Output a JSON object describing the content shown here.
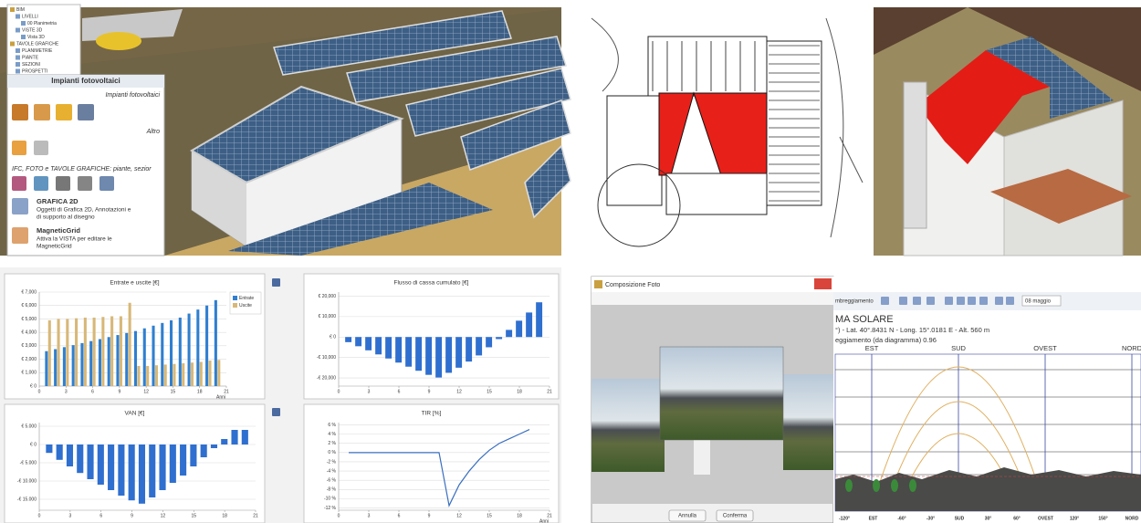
{
  "tree": [
    "BIM",
    "LIVELLI",
    "00 Planimetria",
    "VISTE 3D",
    "Vista 3D",
    "TAVOLE GRAFICHE",
    "PLANIMETRIE",
    "PIANTE",
    "SEZIONI",
    "PROSPETTI"
  ],
  "panel": {
    "title": "Impianti fotovoltaici",
    "section1": "Impianti fotovoltaici",
    "section2": "Altro",
    "section3": "IFC, FOTO e TAVOLE GRAFICHE: piante, sezior",
    "items": [
      {
        "title": "GRAFICA 2D",
        "lines": [
          "Oggetti di Grafica 2D, Annotazioni e",
          "di supporto al disegno"
        ]
      },
      {
        "title": "MagneticGrid",
        "lines": [
          "Attiva la VISTA per editare le",
          "MagneticGrid"
        ]
      }
    ]
  },
  "chart_data": [
    {
      "type": "bar",
      "title": "Entrate e uscite [€]",
      "x_label": "Anni",
      "x": [
        1,
        2,
        3,
        4,
        5,
        6,
        7,
        8,
        9,
        10,
        11,
        12,
        13,
        14,
        15,
        16,
        17,
        18,
        19,
        20
      ],
      "series": [
        {
          "name": "Entrate",
          "color": "#2f7fd0",
          "values": [
            2600,
            2750,
            2900,
            3050,
            3200,
            3350,
            3500,
            3650,
            3800,
            3950,
            4100,
            4300,
            4500,
            4700,
            4900,
            5100,
            5400,
            5700,
            6000,
            6400
          ]
        },
        {
          "name": "Uscite",
          "color": "#d8b878",
          "values": [
            4900,
            5000,
            5000,
            5050,
            5100,
            5100,
            5150,
            5200,
            5200,
            6200,
            1500,
            1500,
            1550,
            1600,
            1650,
            1700,
            1750,
            1800,
            1900,
            1950
          ]
        }
      ],
      "xlim": [
        0,
        21
      ],
      "xticks": [
        0,
        3,
        6,
        9,
        12,
        15,
        18,
        21
      ],
      "ylim": [
        0,
        7000
      ],
      "yticks": [
        {
          "value": 0,
          "label": "€ 0"
        },
        {
          "value": 1000,
          "label": "€ 1,000"
        },
        {
          "value": 2000,
          "label": "€ 2,000"
        },
        {
          "value": 3000,
          "label": "€ 3,000"
        },
        {
          "value": 4000,
          "label": "€ 4,000"
        },
        {
          "value": 5000,
          "label": "€ 5,000"
        },
        {
          "value": 6000,
          "label": "€ 6,000"
        },
        {
          "value": 7000,
          "label": "€ 7,000"
        }
      ],
      "grid": true,
      "legend": "upper right"
    },
    {
      "type": "bar",
      "title": "Flusso di cassa cumulato [€]",
      "x": [
        1,
        2,
        3,
        4,
        5,
        6,
        7,
        8,
        9,
        10,
        11,
        12,
        13,
        14,
        15,
        16,
        17,
        18,
        19,
        20
      ],
      "series": [
        {
          "name": "Flusso",
          "color": "#2f6fcf",
          "values": [
            -2500,
            -4500,
            -6500,
            -8500,
            -10500,
            -12500,
            -14500,
            -16500,
            -18500,
            -19800,
            -17500,
            -15000,
            -12000,
            -9000,
            -5000,
            -1000,
            3500,
            8000,
            12000,
            17000
          ]
        }
      ],
      "xlim": [
        0,
        21
      ],
      "xticks": [
        0,
        3,
        6,
        9,
        12,
        15,
        18,
        21
      ],
      "ylim": [
        -24000,
        22000
      ],
      "yticks": [
        {
          "value": -20000,
          "label": "-€ 20,000"
        },
        {
          "value": -10000,
          "label": "-€ 10,000"
        },
        {
          "value": 0,
          "label": "€ 0"
        },
        {
          "value": 10000,
          "label": "€ 10,000"
        },
        {
          "value": 20000,
          "label": "€ 20,000"
        }
      ],
      "grid": true
    },
    {
      "type": "bar",
      "title": "VAN [€]",
      "x": [
        1,
        2,
        3,
        4,
        5,
        6,
        7,
        8,
        9,
        10,
        11,
        12,
        13,
        14,
        15,
        16,
        17,
        18,
        19,
        20
      ],
      "series": [
        {
          "name": "VAN",
          "color": "#2f6fcf",
          "values": [
            -2300,
            -4200,
            -6000,
            -7800,
            -9500,
            -11000,
            -12500,
            -14000,
            -15300,
            -16200,
            -14500,
            -12500,
            -10500,
            -8500,
            -6000,
            -3500,
            -1000,
            1500,
            4000,
            4000
          ]
        }
      ],
      "xlim": [
        0,
        21
      ],
      "xticks": [
        0,
        3,
        6,
        9,
        12,
        15,
        18,
        21
      ],
      "ylim": [
        -18000,
        6000
      ],
      "yticks": [
        {
          "value": -15000,
          "label": "-€ 15.000"
        },
        {
          "value": -10000,
          "label": "-€ 10.000"
        },
        {
          "value": -5000,
          "label": "-€ 5.000"
        },
        {
          "value": 0,
          "label": "€ 0"
        },
        {
          "value": 5000,
          "label": "€ 5.000"
        }
      ],
      "grid": true
    },
    {
      "type": "line",
      "title": "TIR [%]",
      "x_label": "Anni",
      "x": [
        1,
        2,
        3,
        4,
        5,
        6,
        7,
        8,
        9,
        10,
        11,
        12,
        13,
        14,
        15,
        16,
        17,
        18,
        19
      ],
      "series": [
        {
          "name": "TIR",
          "color": "#3a6fc0",
          "values": [
            0,
            0,
            0,
            0,
            0,
            0,
            0,
            0,
            0,
            0,
            -11.5,
            -7,
            -4,
            -1.5,
            0.5,
            2,
            3,
            4,
            5
          ]
        }
      ],
      "xlim": [
        0,
        21
      ],
      "xticks": [
        0,
        3,
        6,
        9,
        12,
        15,
        18,
        21
      ],
      "ylim": [
        -12.5,
        6.5
      ],
      "yticks": [
        {
          "value": 6,
          "label": "6 %"
        },
        {
          "value": 4,
          "label": "4 %"
        },
        {
          "value": 2,
          "label": "2 %"
        },
        {
          "value": 0,
          "label": "0 %"
        },
        {
          "value": -2,
          "label": "-2 %"
        },
        {
          "value": -4,
          "label": "-4 %"
        },
        {
          "value": -6,
          "label": "-6 %"
        },
        {
          "value": -8,
          "label": "-8 %"
        },
        {
          "value": -10,
          "label": "-10 %"
        },
        {
          "value": -12,
          "label": "-12 %"
        }
      ],
      "grid": true
    }
  ],
  "photo_dialog": {
    "title": "Composizione Foto",
    "buttons": [
      "Annulla",
      "Conferma"
    ]
  },
  "solar": {
    "toolbar": "mbreggiamento",
    "date": "08 maggio",
    "heading": "MA SOLARE",
    "line1": "°) - Lat. 40°.8431 N - Long. 15°.0181 E - Alt. 560 m",
    "line2": "eggiamento (da diagramma) 0.96",
    "top_labels": [
      "EST",
      "SUD",
      "OVEST",
      "NORD"
    ],
    "bottom_labels": [
      "-120°",
      "EST",
      "-60°",
      "-30°",
      "SUD",
      "30°",
      "60°",
      "OVEST",
      "120°",
      "150°",
      "NORD"
    ]
  }
}
